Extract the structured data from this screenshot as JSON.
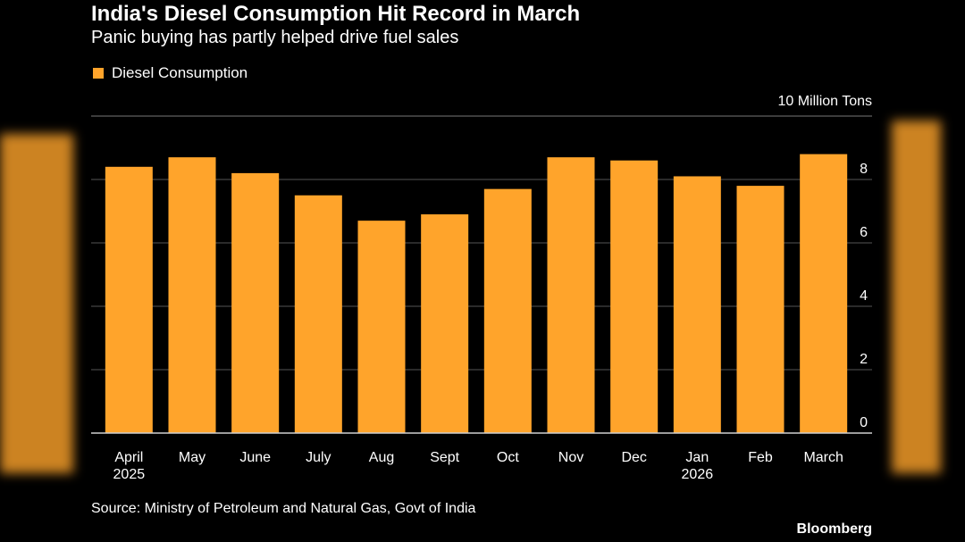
{
  "title": "India's Diesel Consumption Hit Record in March",
  "subtitle": "Panic buying has partly helped drive fuel sales",
  "unit_label": "10 Million Tons",
  "source": "Source: Ministry of Petroleum and Natural Gas, Govt of India",
  "brand": "Bloomberg",
  "colors": {
    "bar": "#ffa42b",
    "background": "#000000",
    "grid": "#555555",
    "text": "#ffffff"
  },
  "chart_data": {
    "type": "bar",
    "title": "India's Diesel Consumption Hit Record in March",
    "subtitle": "Panic buying has partly helped drive fuel sales",
    "ylabel": "10 Million Tons",
    "xlabel": "",
    "legend": [
      "Diesel Consumption"
    ],
    "legend_position": "top-left",
    "y_axis_side": "right",
    "categories": [
      "April 2025",
      "May",
      "June",
      "July",
      "Aug",
      "Sept",
      "Oct",
      "Nov",
      "Dec",
      "Jan 2026",
      "Feb",
      "March"
    ],
    "category_lines": [
      [
        "April",
        "2025"
      ],
      [
        "May"
      ],
      [
        "June"
      ],
      [
        "July"
      ],
      [
        "Aug"
      ],
      [
        "Sept"
      ],
      [
        "Oct"
      ],
      [
        "Nov"
      ],
      [
        "Dec"
      ],
      [
        "Jan",
        "2026"
      ],
      [
        "Feb"
      ],
      [
        "March"
      ]
    ],
    "series": [
      {
        "name": "Diesel Consumption",
        "values": [
          8.4,
          8.7,
          8.2,
          7.5,
          6.7,
          6.9,
          7.7,
          8.7,
          8.6,
          8.1,
          7.8,
          8.8
        ]
      }
    ],
    "ylim": [
      0,
      10
    ],
    "yticks": [
      0,
      2,
      4,
      6,
      8
    ],
    "grid": true
  }
}
